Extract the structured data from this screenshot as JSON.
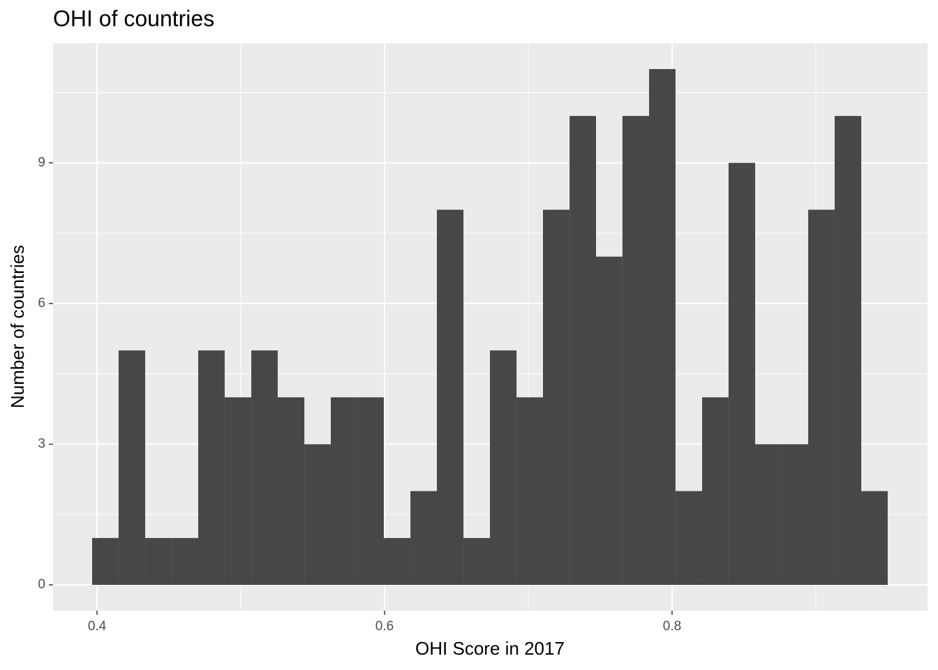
{
  "chart_data": {
    "type": "histogram",
    "title": "OHI of countries",
    "x_label": "OHI Score in 2017",
    "y_label": "Number of countries",
    "bins": [
      0.3966,
      0.415,
      0.4335,
      0.4519,
      0.4704,
      0.4888,
      0.5073,
      0.5257,
      0.5442,
      0.5626,
      0.5811,
      0.5995,
      0.618,
      0.6364,
      0.6549,
      0.6733,
      0.6918,
      0.7102,
      0.7287,
      0.7471,
      0.7655,
      0.784,
      0.8024,
      0.8209,
      0.8393,
      0.8578,
      0.8762,
      0.8947,
      0.9131,
      0.9316,
      0.95
    ],
    "values": [
      1,
      5,
      1,
      1,
      5,
      4,
      5,
      4,
      3,
      4,
      4,
      1,
      2,
      8,
      1,
      5,
      4,
      8,
      10,
      7,
      10,
      11,
      2,
      4,
      9,
      3,
      3,
      8,
      10,
      2
    ],
    "color": "#474747",
    "xlim": [
      0.3694,
      0.9777
    ],
    "ylim": [
      -0.55,
      11.55
    ],
    "xticks": [
      0.4,
      0.6,
      0.8
    ],
    "yticks": [
      0,
      3,
      6,
      9
    ],
    "minor_xticks": [
      0.5,
      0.7,
      0.9
    ],
    "minor_yticks": [
      1.5,
      4.5,
      7.5,
      10.5
    ],
    "grid": true
  }
}
